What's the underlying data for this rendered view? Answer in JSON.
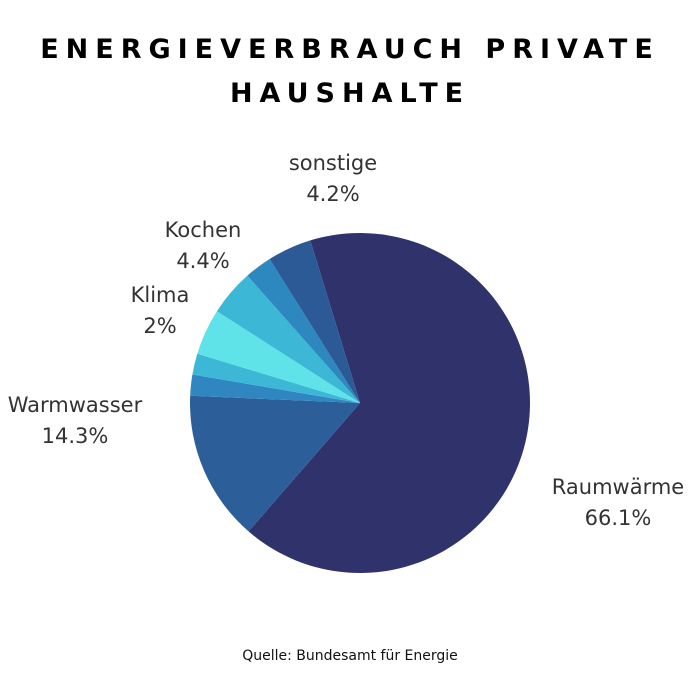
{
  "header": {
    "title_line1": "ENERGIEVERBRAUCH PRIVATE",
    "title_line2": "HAUSHALTE"
  },
  "footer": {
    "source": "Quelle: Bundesamt für Energie"
  },
  "chart_data": {
    "type": "pie",
    "title": "ENERGIEVERBRAUCH PRIVATE HAUSHALTE",
    "slices": [
      {
        "name": "Raumwärme",
        "value": 66.1,
        "label": "66.1%",
        "color": "#30336b"
      },
      {
        "name": "Warmwasser",
        "value": 14.3,
        "label": "14.3%",
        "color": "#2c5f9a"
      },
      {
        "name": "",
        "value": 2.0,
        "label": "",
        "color": "#2f86c1"
      },
      {
        "name": "Klima",
        "value": 2.0,
        "label": "2%",
        "color": "#3cb7d5"
      },
      {
        "name": "",
        "value": 4.4,
        "label": "",
        "color": "#5fe3e8"
      },
      {
        "name": "Kochen",
        "value": 4.4,
        "label": "4.4%",
        "color": "#3cb7d5"
      },
      {
        "name": "",
        "value": 2.6,
        "label": "",
        "color": "#2e88c0"
      },
      {
        "name": "sonstige",
        "value": 4.2,
        "label": "4.2%",
        "color": "#2c5a97"
      }
    ],
    "source": "Quelle: Bundesamt für Energie"
  }
}
